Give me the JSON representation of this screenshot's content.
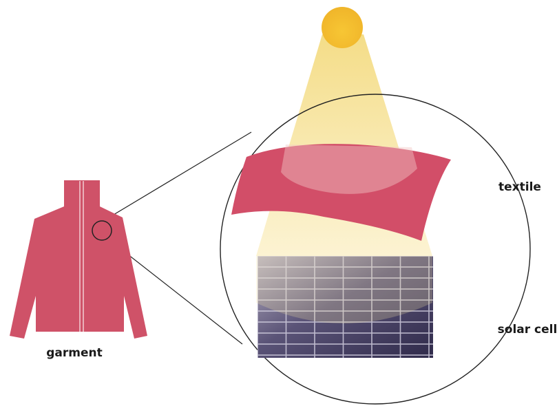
{
  "labels": {
    "garment": "garment",
    "textile": "textile",
    "solar_cell": "solar cell"
  }
}
